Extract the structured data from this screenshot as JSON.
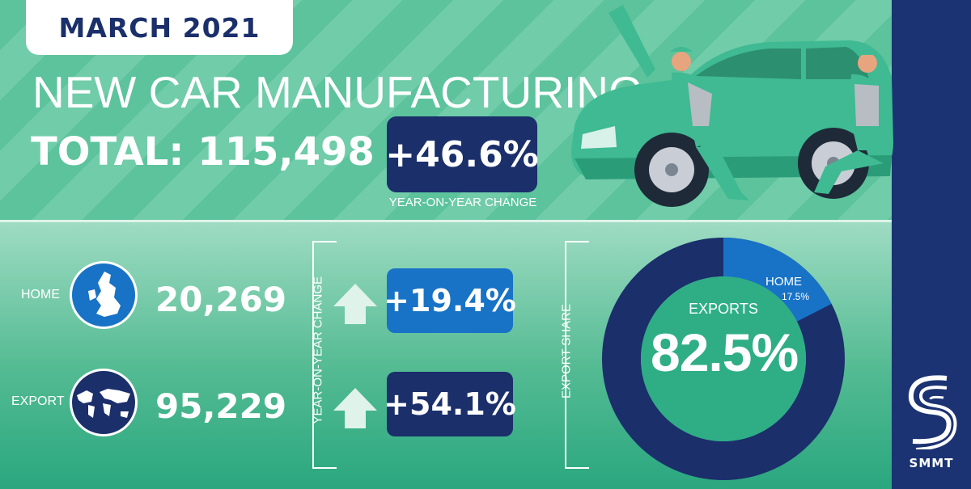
{
  "header": {
    "month": "MARCH 2021",
    "headline": "NEW CAR MANUFACTURING",
    "total": "TOTAL: 115,498",
    "yoy_change": "+46.6%",
    "yoy_caption": "YEAR-ON-YEAR CHANGE"
  },
  "rows": [
    {
      "label": "HOME",
      "value": "20,269",
      "change": "+19.4%",
      "icon": "uk-map-icon",
      "box_color": "#1873c6"
    },
    {
      "label": "EXPORT",
      "value": "95,229",
      "change": "+54.1%",
      "icon": "world-map-icon",
      "box_color": "#1b2f6b"
    }
  ],
  "change_column_label": "YEAR-ON-YEAR CHANGE",
  "share_column_label": "EXPORT SHARE",
  "share": {
    "exports_label": "EXPORTS",
    "exports_value": "82.5%",
    "home_label": "HOME",
    "home_value": "17.5%",
    "home_fraction": 0.175,
    "exports_color": "#1b2f6b",
    "home_color": "#1873c6"
  },
  "brand": {
    "name": "SMMT",
    "color": "#1b3372"
  },
  "colors": {
    "accent_navy": "#1b2f6b",
    "accent_blue": "#1873c6",
    "green": "#2fae86"
  }
}
